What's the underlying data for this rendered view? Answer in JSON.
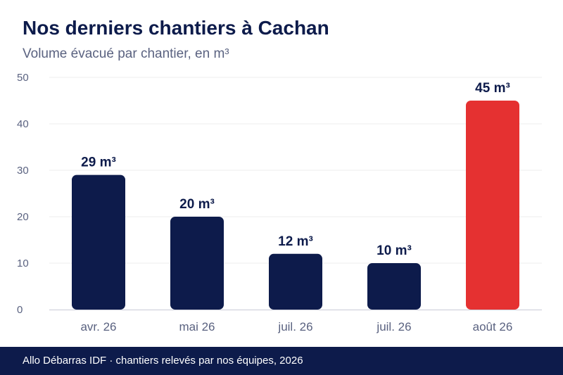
{
  "chart_data": {
    "type": "bar",
    "title": "Nos derniers chantiers à Cachan",
    "subtitle": "Volume évacué par chantier, en m³",
    "categories": [
      "avr. 26",
      "mai 26",
      "juil. 26",
      "juil. 26",
      "août 26"
    ],
    "values": [
      29,
      20,
      12,
      10,
      45
    ],
    "value_labels": [
      "29 m³",
      "20 m³",
      "12 m³",
      "10 m³",
      "45 m³"
    ],
    "highlight_index": 4,
    "ylim": [
      0,
      50
    ],
    "yticks": [
      0,
      10,
      20,
      30,
      40,
      50
    ],
    "grid": true,
    "colors": {
      "bar": "#0d1b4b",
      "highlight": "#e53131",
      "grid": "#eeeeee",
      "axis": "#c8cad6"
    }
  },
  "footer": {
    "text": "Allo Débarras IDF · chantiers relevés par nos équipes, 2026"
  }
}
